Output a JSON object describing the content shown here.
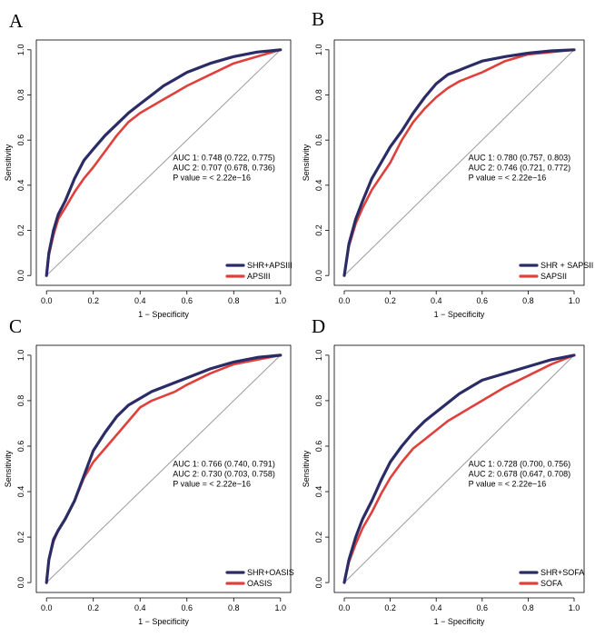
{
  "figure": {
    "xlabel": "1 − Specificity",
    "ylabel": "Sensitivity",
    "xticks": [
      "0.0",
      "0.2",
      "0.4",
      "0.6",
      "0.8",
      "1.0"
    ],
    "yticks": [
      "0.0",
      "0.2",
      "0.4",
      "0.6",
      "0.8",
      "1.0"
    ]
  },
  "colors": {
    "curve1": "#2b2b66",
    "curve2": "#e0403c",
    "diagonal": "#9a9a9a"
  },
  "chart_data": [
    {
      "type": "line",
      "panel": "A",
      "xlabel": "1 − Specificity",
      "ylabel": "Sensitivity",
      "xlim": [
        0,
        1
      ],
      "ylim": [
        0,
        1
      ],
      "auc1": "AUC 1: 0.748 (0.722, 0.775)",
      "auc2": "AUC 2: 0.707 (0.678, 0.736)",
      "pvalue": "P value = < 2.22e−16",
      "legend_position": "bottom-right",
      "series": [
        {
          "name": "SHR+APSIII",
          "x": [
            0,
            0.01,
            0.03,
            0.05,
            0.08,
            0.12,
            0.16,
            0.2,
            0.25,
            0.3,
            0.35,
            0.4,
            0.45,
            0.5,
            0.55,
            0.6,
            0.7,
            0.8,
            0.9,
            1.0
          ],
          "y": [
            0,
            0.1,
            0.2,
            0.27,
            0.33,
            0.43,
            0.51,
            0.56,
            0.62,
            0.67,
            0.72,
            0.76,
            0.8,
            0.84,
            0.87,
            0.9,
            0.94,
            0.97,
            0.99,
            1.0
          ]
        },
        {
          "name": "APSIII",
          "x": [
            0,
            0.01,
            0.03,
            0.05,
            0.08,
            0.12,
            0.16,
            0.2,
            0.25,
            0.3,
            0.35,
            0.4,
            0.45,
            0.5,
            0.55,
            0.6,
            0.7,
            0.8,
            0.9,
            1.0
          ],
          "y": [
            0,
            0.09,
            0.18,
            0.25,
            0.3,
            0.37,
            0.43,
            0.48,
            0.55,
            0.62,
            0.68,
            0.72,
            0.75,
            0.78,
            0.81,
            0.84,
            0.89,
            0.94,
            0.97,
            1.0
          ]
        }
      ]
    },
    {
      "type": "line",
      "panel": "B",
      "xlabel": "1 − Specificity",
      "ylabel": "Sensitivity",
      "xlim": [
        0,
        1
      ],
      "ylim": [
        0,
        1
      ],
      "auc1": "AUC 1: 0.780 (0.757, 0.803)",
      "auc2": "AUC 2: 0.746 (0.721, 0.772)",
      "pvalue": "P value = < 2.22e−16",
      "legend_position": "bottom-right",
      "series": [
        {
          "name": "SHR + SAPSII",
          "x": [
            0,
            0.02,
            0.05,
            0.08,
            0.12,
            0.16,
            0.2,
            0.25,
            0.3,
            0.35,
            0.4,
            0.45,
            0.5,
            0.55,
            0.6,
            0.7,
            0.8,
            0.9,
            1.0
          ],
          "y": [
            0,
            0.14,
            0.25,
            0.33,
            0.43,
            0.5,
            0.57,
            0.64,
            0.72,
            0.79,
            0.85,
            0.89,
            0.91,
            0.93,
            0.95,
            0.97,
            0.985,
            0.995,
            1.0
          ]
        },
        {
          "name": "SAPSII",
          "x": [
            0,
            0.02,
            0.05,
            0.08,
            0.12,
            0.16,
            0.2,
            0.25,
            0.3,
            0.35,
            0.4,
            0.45,
            0.5,
            0.55,
            0.6,
            0.7,
            0.8,
            0.9,
            1.0
          ],
          "y": [
            0,
            0.13,
            0.23,
            0.3,
            0.38,
            0.44,
            0.5,
            0.6,
            0.68,
            0.74,
            0.79,
            0.83,
            0.86,
            0.88,
            0.9,
            0.95,
            0.98,
            0.99,
            1.0
          ]
        }
      ]
    },
    {
      "type": "line",
      "panel": "C",
      "xlabel": "1 − Specificity",
      "ylabel": "Sensitivity",
      "xlim": [
        0,
        1
      ],
      "ylim": [
        0,
        1
      ],
      "auc1": "AUC 1: 0.766 (0.740, 0.791)",
      "auc2": "AUC 2: 0.730 (0.703, 0.758)",
      "pvalue": "P value = < 2.22e−16",
      "legend_position": "bottom-right",
      "series": [
        {
          "name": "SHR+OASIS",
          "x": [
            0,
            0.01,
            0.03,
            0.05,
            0.08,
            0.12,
            0.16,
            0.2,
            0.25,
            0.3,
            0.35,
            0.4,
            0.45,
            0.5,
            0.55,
            0.6,
            0.7,
            0.8,
            0.9,
            1.0
          ],
          "y": [
            0,
            0.1,
            0.19,
            0.23,
            0.28,
            0.36,
            0.47,
            0.58,
            0.66,
            0.73,
            0.78,
            0.81,
            0.84,
            0.86,
            0.88,
            0.9,
            0.94,
            0.97,
            0.99,
            1.0
          ]
        },
        {
          "name": "OASIS",
          "x": [
            0,
            0.01,
            0.03,
            0.05,
            0.08,
            0.12,
            0.16,
            0.2,
            0.25,
            0.3,
            0.35,
            0.4,
            0.45,
            0.5,
            0.55,
            0.6,
            0.7,
            0.8,
            0.9,
            1.0
          ],
          "y": [
            0,
            0.1,
            0.18,
            0.23,
            0.28,
            0.36,
            0.46,
            0.53,
            0.59,
            0.65,
            0.71,
            0.77,
            0.8,
            0.82,
            0.84,
            0.87,
            0.92,
            0.96,
            0.98,
            1.0
          ]
        }
      ]
    },
    {
      "type": "line",
      "panel": "D",
      "xlabel": "1 − Specificity",
      "ylabel": "Sensitivity",
      "xlim": [
        0,
        1
      ],
      "ylim": [
        0,
        1
      ],
      "auc1": "AUC 1: 0.728 (0.700, 0.756)",
      "auc2": "AUC 2: 0.678 (0.647, 0.708)",
      "pvalue": "P value = < 2.22e−16",
      "legend_position": "bottom-right",
      "series": [
        {
          "name": "SHR+SOFA",
          "x": [
            0,
            0.02,
            0.05,
            0.08,
            0.12,
            0.16,
            0.2,
            0.25,
            0.3,
            0.35,
            0.4,
            0.45,
            0.5,
            0.55,
            0.6,
            0.7,
            0.8,
            0.9,
            1.0
          ],
          "y": [
            0,
            0.1,
            0.2,
            0.28,
            0.36,
            0.45,
            0.53,
            0.6,
            0.66,
            0.71,
            0.75,
            0.79,
            0.83,
            0.86,
            0.89,
            0.92,
            0.95,
            0.98,
            1.0
          ]
        },
        {
          "name": "SOFA",
          "x": [
            0,
            0.02,
            0.05,
            0.08,
            0.12,
            0.16,
            0.2,
            0.25,
            0.3,
            0.35,
            0.4,
            0.45,
            0.5,
            0.55,
            0.6,
            0.7,
            0.8,
            0.9,
            1.0
          ],
          "y": [
            0,
            0.09,
            0.17,
            0.24,
            0.31,
            0.39,
            0.46,
            0.53,
            0.59,
            0.63,
            0.67,
            0.71,
            0.74,
            0.77,
            0.8,
            0.86,
            0.91,
            0.96,
            1.0
          ]
        }
      ]
    }
  ]
}
